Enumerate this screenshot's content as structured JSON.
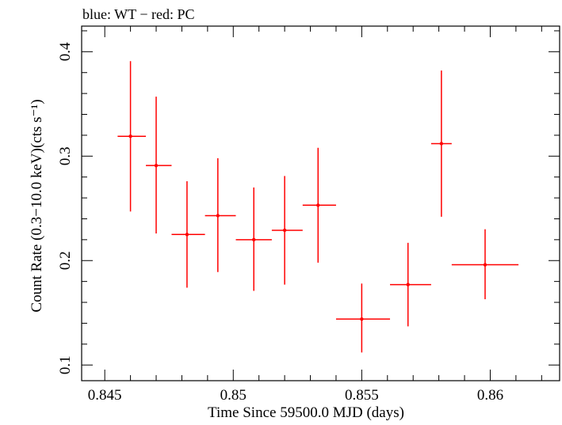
{
  "chart_data": {
    "type": "scatter",
    "title": "blue: WT − red: PC",
    "xlabel": "Time Since 59500.0 MJD (days)",
    "ylabel": "Count Rate (0.3−10.0 keV)(cts s⁻¹)",
    "xlim": [
      0.8441,
      0.8627
    ],
    "ylim": [
      0.085,
      0.4245
    ],
    "xticks": [
      0.845,
      0.85,
      0.855,
      0.86
    ],
    "xtick_labels": [
      "0.845",
      "0.85",
      "0.855",
      "0.86"
    ],
    "yticks": [
      0.1,
      0.2,
      0.3,
      0.4
    ],
    "ytick_labels": [
      "0.1",
      "0.2",
      "0.3",
      "0.4"
    ],
    "grid": false,
    "series": [
      {
        "color": "#ff0000",
        "points": [
          {
            "x": 0.846,
            "y": 0.319,
            "xlo": 0.8455,
            "xhi": 0.8466,
            "ylo": 0.247,
            "yhi": 0.391
          },
          {
            "x": 0.847,
            "y": 0.291,
            "xlo": 0.8466,
            "xhi": 0.8476,
            "ylo": 0.226,
            "yhi": 0.357
          },
          {
            "x": 0.8482,
            "y": 0.225,
            "xlo": 0.8476,
            "xhi": 0.8489,
            "ylo": 0.174,
            "yhi": 0.276
          },
          {
            "x": 0.8494,
            "y": 0.243,
            "xlo": 0.8489,
            "xhi": 0.8501,
            "ylo": 0.189,
            "yhi": 0.298
          },
          {
            "x": 0.8508,
            "y": 0.22,
            "xlo": 0.8501,
            "xhi": 0.8515,
            "ylo": 0.171,
            "yhi": 0.27
          },
          {
            "x": 0.852,
            "y": 0.229,
            "xlo": 0.8515,
            "xhi": 0.8527,
            "ylo": 0.177,
            "yhi": 0.281
          },
          {
            "x": 0.8533,
            "y": 0.253,
            "xlo": 0.8527,
            "xhi": 0.854,
            "ylo": 0.198,
            "yhi": 0.308
          },
          {
            "x": 0.855,
            "y": 0.144,
            "xlo": 0.854,
            "xhi": 0.8561,
            "ylo": 0.112,
            "yhi": 0.178
          },
          {
            "x": 0.8568,
            "y": 0.177,
            "xlo": 0.8561,
            "xhi": 0.8577,
            "ylo": 0.137,
            "yhi": 0.217
          },
          {
            "x": 0.8581,
            "y": 0.312,
            "xlo": 0.8577,
            "xhi": 0.8585,
            "ylo": 0.242,
            "yhi": 0.382
          },
          {
            "x": 0.8598,
            "y": 0.196,
            "xlo": 0.8585,
            "xhi": 0.8611,
            "ylo": 0.163,
            "yhi": 0.23
          }
        ]
      }
    ]
  }
}
